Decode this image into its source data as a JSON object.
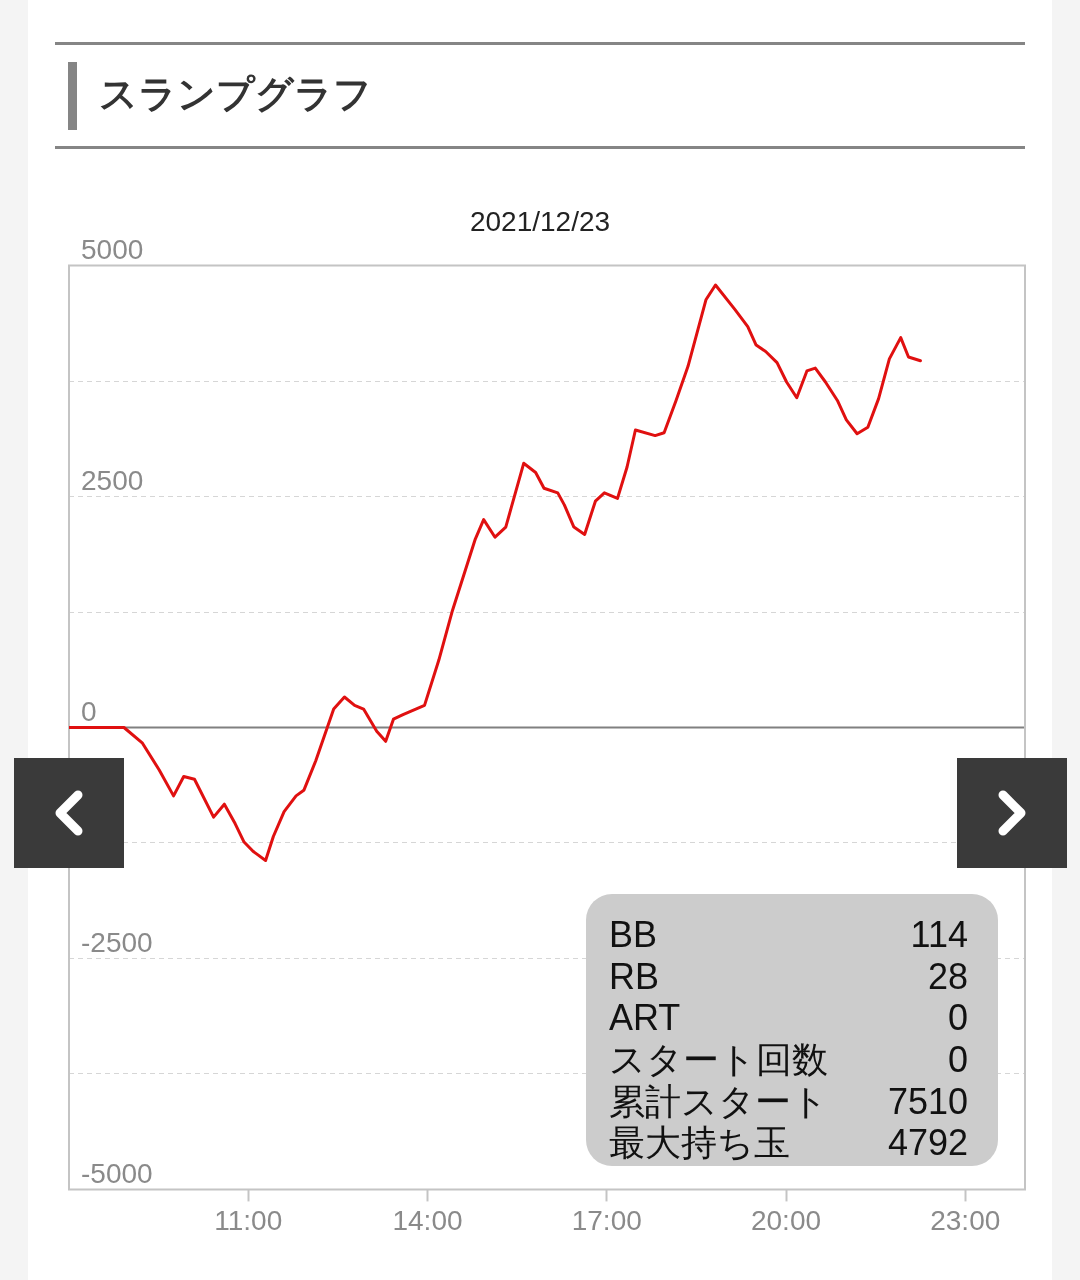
{
  "chart_data": {
    "type": "line",
    "title": "スランプグラフ",
    "subtitle": "2021/12/23",
    "x": [
      8,
      8.92,
      9.23,
      9.51,
      9.75,
      9.92,
      10.1,
      10.42,
      10.6,
      10.78,
      10.93,
      11.08,
      11.29,
      11.42,
      11.6,
      11.8,
      11.93,
      12.13,
      12.43,
      12.61,
      12.78,
      12.93,
      13.15,
      13.3,
      13.43,
      13.59,
      13.95,
      14.19,
      14.41,
      14.8,
      14.94,
      15.13,
      15.31,
      15.61,
      15.81,
      15.95,
      16.18,
      16.29,
      16.45,
      16.63,
      16.81,
      16.96,
      17.18,
      17.34,
      17.48,
      17.81,
      17.96,
      18.16,
      18.36,
      18.66,
      18.82,
      19.15,
      19.36,
      19.5,
      19.66,
      19.85,
      20.01,
      20.18,
      20.35,
      20.49,
      20.66,
      20.86,
      21.01,
      21.19,
      21.37,
      21.55,
      21.73,
      21.92,
      22.05,
      22.25
    ],
    "series": [
      {
        "color": "#e01010",
        "values": [
          0,
          0,
          -170,
          -460,
          -740,
          -530,
          -560,
          -970,
          -830,
          -1040,
          -1240,
          -1340,
          -1440,
          -1180,
          -910,
          -740,
          -680,
          -360,
          200,
          330,
          240,
          200,
          -40,
          -150,
          90,
          140,
          240,
          730,
          1250,
          2040,
          2250,
          2060,
          2170,
          2860,
          2760,
          2590,
          2540,
          2410,
          2170,
          2090,
          2450,
          2540,
          2480,
          2820,
          3220,
          3160,
          3190,
          3540,
          3910,
          4630,
          4790,
          4520,
          4340,
          4140,
          4070,
          3950,
          3740,
          3570,
          3860,
          3890,
          3740,
          3540,
          3330,
          3180,
          3250,
          3560,
          3990,
          4220,
          4010,
          3970
        ]
      }
    ],
    "xlim": [
      8,
      24
    ],
    "xticks": [
      {
        "value": 11,
        "label": "11:00"
      },
      {
        "value": 14,
        "label": "14:00"
      },
      {
        "value": 17,
        "label": "17:00"
      },
      {
        "value": 20,
        "label": "20:00"
      },
      {
        "value": 23,
        "label": "23:00"
      }
    ],
    "ylim": [
      -5000,
      5000
    ],
    "yticks": [
      5000,
      {
        "value": 3750,
        "label": null
      },
      2500,
      {
        "value": 1250,
        "label": null
      },
      0,
      {
        "value": -1250,
        "label": null
      },
      -2500,
      {
        "value": -3750,
        "label": null
      },
      -5000
    ],
    "grid": "y",
    "marker": "none",
    "ref_lines": [
      {
        "axis": "y",
        "value": 0,
        "color": "#808080"
      }
    ],
    "annotations": [
      "BB",
      "114",
      "RB",
      "28",
      "ART",
      "0",
      "スタート回数",
      "0",
      "累計スタート",
      "7510",
      "最大持ち玉",
      "4792"
    ]
  }
}
